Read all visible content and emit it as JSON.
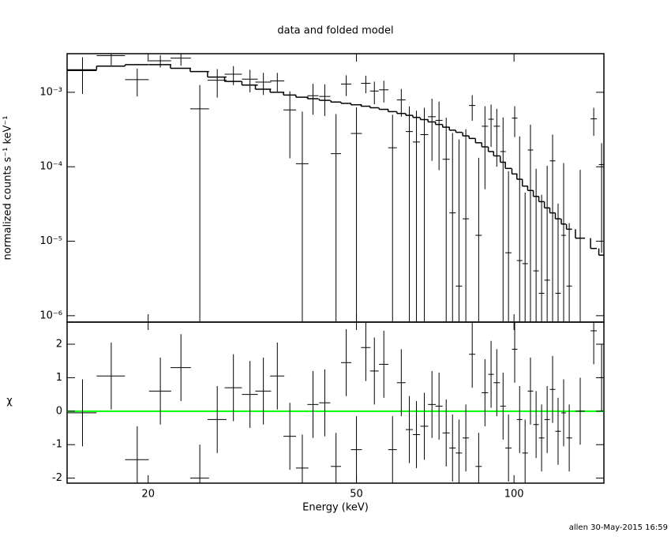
{
  "footer": "allen 30-May-2015 16:59",
  "chart_data": [
    {
      "type": "errorbar",
      "title": "data and folded model",
      "ylabel": "normalized counts s⁻¹ keV⁻¹",
      "log_y": true,
      "log_x": true,
      "color": "#000000",
      "xlim": [
        14.0,
        148.5
      ],
      "ylim": [
        8.2e-07,
        0.0033
      ],
      "yticks": [
        {
          "value": 1e-06,
          "label": "10⁻⁶"
        },
        {
          "value": 1e-05,
          "label": "10⁻⁵"
        },
        {
          "value": 0.0001,
          "label": "10⁻⁴"
        },
        {
          "value": 0.001,
          "label": "10⁻³"
        }
      ],
      "x": [
        14.98,
        17.0,
        19.06,
        21.1,
        23.1,
        25.1,
        27.1,
        29.1,
        31.3,
        33.2,
        35.3,
        37.3,
        39.4,
        41.3,
        43.5,
        45.7,
        47.8,
        50.0,
        52.1,
        54.1,
        56.4,
        58.6,
        60.9,
        63.1,
        65.1,
        67.4,
        69.7,
        71.9,
        74.2,
        76.3,
        78.5,
        80.9,
        83.2,
        85.6,
        88.0,
        90.4,
        92.7,
        95.3,
        97.6,
        100.3,
        102.5,
        105.0,
        107.5,
        110.2,
        112.9,
        115.7,
        118.5,
        121.4,
        124.4,
        127.5,
        133.8,
        142.0,
        147.0
      ],
      "x_errors": [
        0.96,
        1.06,
        0.99,
        1.03,
        1.04,
        1.04,
        1.13,
        1.11,
        1.09,
        1.15,
        1.1,
        1.03,
        1.09,
        1.0,
        1.06,
        1.03,
        1.08,
        1.21,
        1.08,
        1.03,
        1.17,
        1.12,
        1.16,
        0.98,
        1.02,
        1.17,
        1.21,
        1.12,
        1.16,
        1.06,
        1.09,
        1.12,
        1.15,
        1.19,
        1.22,
        1.1,
        1.29,
        1.16,
        1.35,
        1.22,
        1.24,
        1.27,
        1.31,
        1.34,
        1.37,
        1.4,
        1.44,
        1.47,
        1.29,
        1.55,
        2.78,
        1.97,
        1.78
      ],
      "series": [
        {
          "color": "#000000",
          "values": [
            0.00195,
            0.0031,
            0.00148,
            0.00265,
            0.00288,
            0.0006,
            0.00145,
            0.00175,
            0.0015,
            0.00137,
            0.00142,
            0.00058,
            0.00011,
            0.0009,
            0.00088,
            0.00015,
            0.00129,
            0.00028,
            0.00132,
            0.00104,
            0.00108,
            0.00018,
            0.00079,
            0.000297,
            0.000215,
            0.00027,
            0.00047,
            0.00042,
            0.000126,
            2.4e-05,
            2.5e-06,
            2e-05,
            0.000665,
            1.2e-05,
            0.00035,
            0.000435,
            0.00035,
            0.00016,
            7e-06,
            0.00045,
            5.5e-06,
            5e-06,
            0.000168,
            4e-06,
            2e-06,
            3e-06,
            0.00012,
            2e-06,
            1.2e-05,
            2.5e-06,
            1.1e-05,
            0.00044,
            0.000107
          ],
          "errors": [
            0.001,
            0.0008,
            0.0006,
            0.0005,
            0.0006,
            0.00065,
            0.0006,
            0.0005,
            0.0005,
            0.00045,
            0.0004,
            0.00045,
            0.00044,
            0.0004,
            0.0004,
            0.00036,
            0.0004,
            0.00035,
            0.00035,
            0.00035,
            0.00035,
            0.00032,
            0.00032,
            0.00035,
            0.00035,
            0.00035,
            0.00035,
            0.00033,
            0.00033,
            0.00026,
            0.00023,
            0.0003,
            0.00025,
            0.00012,
            0.0003,
            0.00025,
            0.00025,
            0.0003,
            8e-05,
            0.0002,
            0.00025,
            4e-05,
            0.0002,
            9e-05,
            4e-05,
            0.0001,
            0.00015,
            3e-05,
            0.0001,
            1.5e-05,
            8e-05,
            0.00018,
            0.0001
          ]
        },
        {
          "type": "step",
          "color": "#000000",
          "values": [
            0.002,
            0.00225,
            0.00235,
            0.00235,
            0.0021,
            0.0019,
            0.0016,
            0.0014,
            0.00125,
            0.0011,
            0.001,
            0.00092,
            0.00086,
            0.00082,
            0.00078,
            0.00074,
            0.00071,
            0.00068,
            0.00065,
            0.00062,
            0.00059,
            0.00055,
            0.00052,
            0.00049,
            0.00046,
            0.00043,
            0.0004,
            0.00037,
            0.00034,
            0.00031,
            0.00029,
            0.00026,
            0.00024,
            0.00021,
            0.000185,
            0.00016,
            0.00014,
            0.000115,
            9.5e-05,
            8e-05,
            6.8e-05,
            5.5e-05,
            4.8e-05,
            4e-05,
            3.4e-05,
            2.8e-05,
            2.4e-05,
            2e-05,
            1.7e-05,
            1.45e-05,
            1.1e-05,
            8e-06,
            6.5e-06
          ]
        }
      ]
    },
    {
      "type": "errorbar",
      "xlabel": "Energy (keV)",
      "ylabel": "χ",
      "ylim": [
        -2.15,
        2.66
      ],
      "yticks": [
        -2,
        -1,
        0,
        1,
        2
      ],
      "xticks": [
        20,
        50,
        100
      ],
      "hline": 0,
      "hline_color": "#00ff00",
      "series": [
        {
          "color": "#000000",
          "values": [
            -0.05,
            1.05,
            -1.45,
            0.6,
            1.3,
            -2.0,
            -0.25,
            0.7,
            0.5,
            0.6,
            1.05,
            -0.75,
            -1.7,
            0.2,
            0.25,
            -1.65,
            1.45,
            -1.15,
            1.9,
            1.2,
            1.4,
            -1.15,
            0.85,
            -0.55,
            -0.7,
            -0.45,
            0.2,
            0.15,
            -0.65,
            -1.1,
            -1.25,
            -0.8,
            1.7,
            -1.65,
            0.55,
            1.1,
            0.85,
            0.15,
            -1.1,
            1.85,
            -0.25,
            -1.25,
            0.6,
            -0.4,
            -0.8,
            -0.25,
            0.65,
            -0.6,
            -0.05,
            -0.8,
            0,
            2.4,
            1.0
          ],
          "errors": [
            1,
            1,
            1,
            1,
            1,
            1,
            1,
            1,
            1,
            1,
            1,
            1,
            1,
            1,
            1,
            1,
            1,
            1,
            1,
            1,
            1,
            1,
            1,
            1,
            1,
            1,
            1,
            1,
            1,
            1,
            1,
            1,
            1,
            1,
            1,
            1,
            1,
            1,
            1,
            1,
            1,
            1,
            1,
            1,
            1,
            1,
            1,
            1,
            1,
            1,
            1,
            1,
            1
          ]
        }
      ]
    }
  ]
}
